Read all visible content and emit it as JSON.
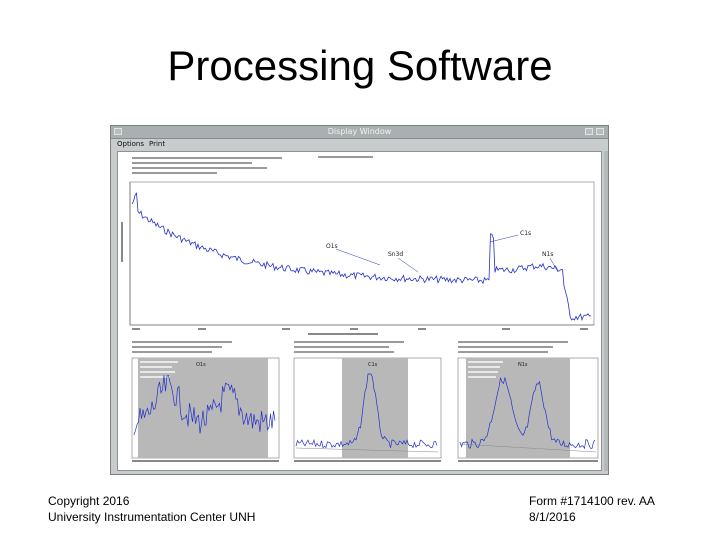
{
  "slide": {
    "title": "Processing Software"
  },
  "footer": {
    "left_line1": "Copyright 2016",
    "left_line2": "University Instrumentation Center UNH",
    "right_line1": "Form #1714100 rev. AA",
    "right_line2": "8/1/2016"
  },
  "window": {
    "title": "Display Window",
    "menu": {
      "options": "Options",
      "print": "Print"
    },
    "survey": {
      "peaks": [
        {
          "label": "O1s"
        },
        {
          "label": "Sn3d"
        },
        {
          "label": "C1s"
        },
        {
          "label": "N1s"
        }
      ]
    },
    "panels": [
      {
        "label": "O1s"
      },
      {
        "label": "C1s"
      },
      {
        "label": "N1s"
      }
    ]
  },
  "colors": {
    "trace": "#2432c8",
    "panel_fill": "#b8b8b8",
    "window_bg": "#c8cccc"
  }
}
